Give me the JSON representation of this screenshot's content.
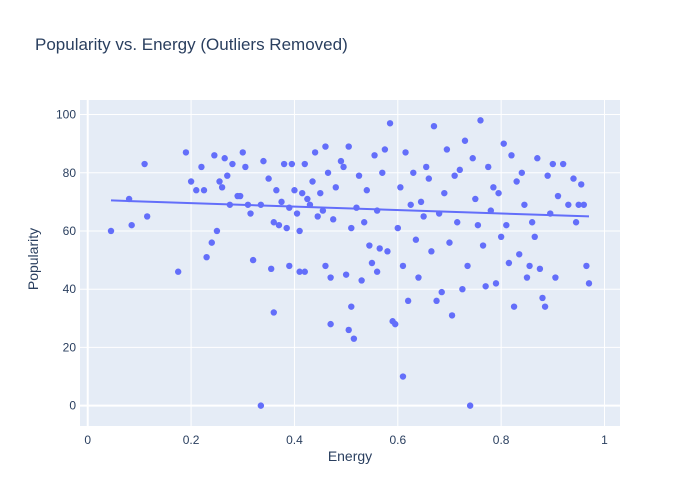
{
  "chart_data": {
    "type": "scatter",
    "title": "Popularity vs. Energy (Outliers Removed)",
    "xlabel": "Energy",
    "ylabel": "Popularity",
    "xlim": [
      -0.015,
      1.03
    ],
    "ylim": [
      -7,
      105
    ],
    "xticks": [
      0,
      0.2,
      0.4,
      0.6,
      0.8,
      1
    ],
    "xtick_labels": [
      "0",
      "0.2",
      "0.4",
      "0.6",
      "0.8",
      "1"
    ],
    "yticks": [
      0,
      20,
      40,
      60,
      80,
      100
    ],
    "ytick_labels": [
      "0",
      "20",
      "40",
      "60",
      "80",
      "100"
    ],
    "grid": true,
    "legend": "none",
    "colors": {
      "points": "#636efa",
      "trendline": "#636efa",
      "plot_bg": "#e5ecf6",
      "grid": "#ffffff",
      "text": "#2a3f5f"
    },
    "trendline": {
      "x": [
        0.045,
        0.97
      ],
      "y": [
        70.5,
        65
      ]
    },
    "points": [
      [
        0.045,
        60
      ],
      [
        0.08,
        71
      ],
      [
        0.085,
        62
      ],
      [
        0.11,
        83
      ],
      [
        0.115,
        65
      ],
      [
        0.175,
        46
      ],
      [
        0.19,
        87
      ],
      [
        0.2,
        77
      ],
      [
        0.21,
        74
      ],
      [
        0.22,
        82
      ],
      [
        0.225,
        74
      ],
      [
        0.23,
        51
      ],
      [
        0.24,
        56
      ],
      [
        0.245,
        86
      ],
      [
        0.25,
        60
      ],
      [
        0.255,
        77
      ],
      [
        0.26,
        75
      ],
      [
        0.265,
        85
      ],
      [
        0.27,
        79
      ],
      [
        0.275,
        69
      ],
      [
        0.28,
        83
      ],
      [
        0.29,
        72
      ],
      [
        0.295,
        72
      ],
      [
        0.3,
        87
      ],
      [
        0.305,
        82
      ],
      [
        0.31,
        69
      ],
      [
        0.315,
        66
      ],
      [
        0.32,
        50
      ],
      [
        0.335,
        0
      ],
      [
        0.335,
        69
      ],
      [
        0.34,
        84
      ],
      [
        0.35,
        78
      ],
      [
        0.355,
        47
      ],
      [
        0.36,
        32
      ],
      [
        0.36,
        63
      ],
      [
        0.365,
        74
      ],
      [
        0.37,
        62
      ],
      [
        0.375,
        70
      ],
      [
        0.38,
        83
      ],
      [
        0.385,
        61
      ],
      [
        0.39,
        48
      ],
      [
        0.39,
        68
      ],
      [
        0.395,
        83
      ],
      [
        0.4,
        74
      ],
      [
        0.405,
        66
      ],
      [
        0.41,
        46
      ],
      [
        0.41,
        60
      ],
      [
        0.415,
        73
      ],
      [
        0.42,
        46
      ],
      [
        0.42,
        83
      ],
      [
        0.425,
        71
      ],
      [
        0.43,
        69
      ],
      [
        0.435,
        77
      ],
      [
        0.44,
        87
      ],
      [
        0.445,
        65
      ],
      [
        0.45,
        73
      ],
      [
        0.455,
        67
      ],
      [
        0.46,
        48
      ],
      [
        0.46,
        89
      ],
      [
        0.465,
        80
      ],
      [
        0.47,
        44
      ],
      [
        0.47,
        28
      ],
      [
        0.475,
        64
      ],
      [
        0.48,
        75
      ],
      [
        0.49,
        84
      ],
      [
        0.495,
        82
      ],
      [
        0.5,
        45
      ],
      [
        0.505,
        26
      ],
      [
        0.505,
        89
      ],
      [
        0.51,
        61
      ],
      [
        0.51,
        34
      ],
      [
        0.515,
        23
      ],
      [
        0.52,
        68
      ],
      [
        0.525,
        79
      ],
      [
        0.53,
        43
      ],
      [
        0.535,
        63
      ],
      [
        0.54,
        74
      ],
      [
        0.545,
        55
      ],
      [
        0.55,
        49
      ],
      [
        0.555,
        86
      ],
      [
        0.56,
        67
      ],
      [
        0.56,
        46
      ],
      [
        0.565,
        54
      ],
      [
        0.57,
        80
      ],
      [
        0.575,
        88
      ],
      [
        0.58,
        53
      ],
      [
        0.585,
        97
      ],
      [
        0.59,
        29
      ],
      [
        0.595,
        28
      ],
      [
        0.6,
        61
      ],
      [
        0.605,
        75
      ],
      [
        0.61,
        10
      ],
      [
        0.61,
        48
      ],
      [
        0.615,
        87
      ],
      [
        0.62,
        36
      ],
      [
        0.625,
        69
      ],
      [
        0.63,
        80
      ],
      [
        0.635,
        57
      ],
      [
        0.64,
        44
      ],
      [
        0.645,
        70
      ],
      [
        0.65,
        65
      ],
      [
        0.655,
        82
      ],
      [
        0.66,
        78
      ],
      [
        0.665,
        53
      ],
      [
        0.67,
        96
      ],
      [
        0.675,
        36
      ],
      [
        0.68,
        66
      ],
      [
        0.685,
        39
      ],
      [
        0.69,
        73
      ],
      [
        0.695,
        88
      ],
      [
        0.7,
        56
      ],
      [
        0.705,
        31
      ],
      [
        0.71,
        79
      ],
      [
        0.715,
        63
      ],
      [
        0.72,
        81
      ],
      [
        0.725,
        40
      ],
      [
        0.73,
        91
      ],
      [
        0.735,
        48
      ],
      [
        0.74,
        0
      ],
      [
        0.745,
        85
      ],
      [
        0.75,
        71
      ],
      [
        0.755,
        62
      ],
      [
        0.76,
        98
      ],
      [
        0.765,
        55
      ],
      [
        0.77,
        41
      ],
      [
        0.775,
        82
      ],
      [
        0.78,
        67
      ],
      [
        0.785,
        75
      ],
      [
        0.79,
        42
      ],
      [
        0.795,
        73
      ],
      [
        0.8,
        58
      ],
      [
        0.805,
        90
      ],
      [
        0.81,
        62
      ],
      [
        0.815,
        49
      ],
      [
        0.82,
        86
      ],
      [
        0.825,
        34
      ],
      [
        0.83,
        77
      ],
      [
        0.835,
        52
      ],
      [
        0.84,
        80
      ],
      [
        0.845,
        69
      ],
      [
        0.85,
        44
      ],
      [
        0.855,
        48
      ],
      [
        0.86,
        63
      ],
      [
        0.865,
        58
      ],
      [
        0.87,
        85
      ],
      [
        0.875,
        47
      ],
      [
        0.88,
        37
      ],
      [
        0.885,
        34
      ],
      [
        0.89,
        79
      ],
      [
        0.895,
        66
      ],
      [
        0.9,
        83
      ],
      [
        0.905,
        44
      ],
      [
        0.91,
        72
      ],
      [
        0.92,
        83
      ],
      [
        0.93,
        69
      ],
      [
        0.94,
        78
      ],
      [
        0.945,
        63
      ],
      [
        0.95,
        69
      ],
      [
        0.955,
        76
      ],
      [
        0.96,
        69
      ],
      [
        0.965,
        48
      ],
      [
        0.97,
        42
      ]
    ]
  }
}
